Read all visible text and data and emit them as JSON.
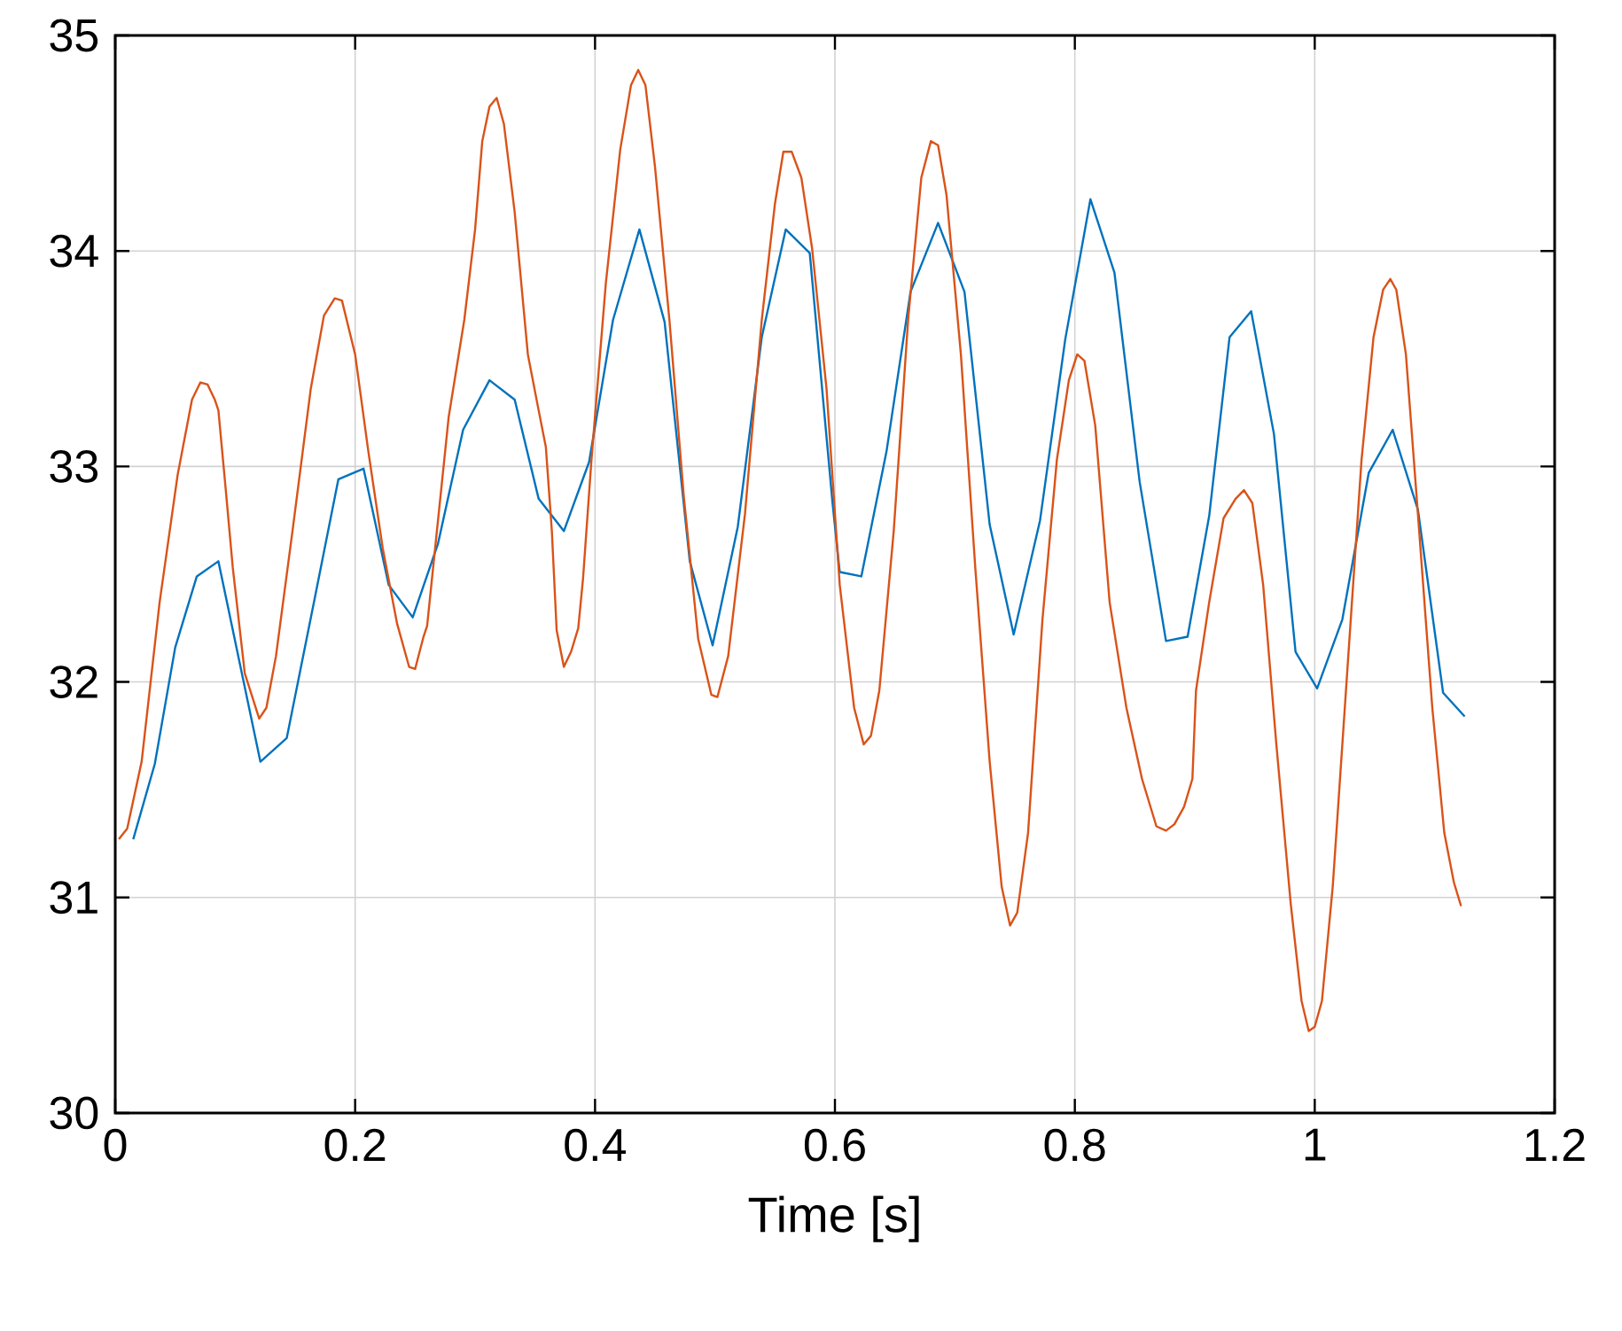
{
  "chart_data": {
    "type": "line",
    "xlabel": "Time [s]",
    "xlim": [
      0,
      1.2
    ],
    "xticks": [
      0,
      0.2,
      0.4,
      0.6,
      0.8,
      1,
      1.2
    ],
    "ylim": [
      30,
      35
    ],
    "yticks": [
      30,
      31,
      32,
      33,
      34,
      35
    ],
    "grid": true,
    "series": [
      {
        "color": "#0072bd",
        "x": [
          0.015,
          0.033,
          0.05,
          0.068,
          0.086,
          0.121,
          0.143,
          0.166,
          0.186,
          0.207,
          0.228,
          0.248,
          0.269,
          0.29,
          0.312,
          0.333,
          0.353,
          0.374,
          0.395,
          0.415,
          0.437,
          0.458,
          0.479,
          0.498,
          0.519,
          0.539,
          0.559,
          0.579,
          0.598,
          0.604,
          0.622,
          0.643,
          0.663,
          0.686,
          0.708,
          0.729,
          0.749,
          0.771,
          0.792,
          0.813,
          0.833,
          0.854,
          0.876,
          0.894,
          0.912,
          0.929,
          0.947,
          0.966,
          0.984,
          1.002,
          1.023,
          1.045,
          1.065,
          1.086,
          1.107,
          1.125
        ],
        "values": [
          31.27,
          31.62,
          32.16,
          32.49,
          32.56,
          31.63,
          31.74,
          32.38,
          32.94,
          32.99,
          32.45,
          32.3,
          32.64,
          33.17,
          33.4,
          33.31,
          32.85,
          32.7,
          33.02,
          33.68,
          34.1,
          33.67,
          32.56,
          32.17,
          32.72,
          33.6,
          34.1,
          33.99,
          32.83,
          32.51,
          32.49,
          33.07,
          33.81,
          34.13,
          33.81,
          32.73,
          32.22,
          32.75,
          33.59,
          34.24,
          33.9,
          32.93,
          32.19,
          32.21,
          32.77,
          33.6,
          33.72,
          33.15,
          32.14,
          31.97,
          32.29,
          32.97,
          33.17,
          32.8,
          31.95,
          31.84
        ]
      },
      {
        "color": "#d95319",
        "x": [
          0.003,
          0.01,
          0.022,
          0.037,
          0.052,
          0.064,
          0.071,
          0.077,
          0.083,
          0.086,
          0.092,
          0.098,
          0.108,
          0.12,
          0.126,
          0.134,
          0.148,
          0.163,
          0.174,
          0.183,
          0.189,
          0.2,
          0.211,
          0.223,
          0.235,
          0.245,
          0.25,
          0.257,
          0.26,
          0.265,
          0.278,
          0.291,
          0.3,
          0.306,
          0.312,
          0.318,
          0.324,
          0.333,
          0.344,
          0.353,
          0.359,
          0.364,
          0.368,
          0.374,
          0.38,
          0.386,
          0.39,
          0.397,
          0.409,
          0.421,
          0.43,
          0.436,
          0.442,
          0.45,
          0.462,
          0.474,
          0.486,
          0.497,
          0.502,
          0.511,
          0.525,
          0.539,
          0.55,
          0.557,
          0.564,
          0.572,
          0.581,
          0.593,
          0.604,
          0.616,
          0.624,
          0.63,
          0.637,
          0.649,
          0.661,
          0.672,
          0.68,
          0.686,
          0.693,
          0.705,
          0.717,
          0.729,
          0.739,
          0.746,
          0.752,
          0.761,
          0.773,
          0.785,
          0.795,
          0.802,
          0.808,
          0.817,
          0.829,
          0.843,
          0.856,
          0.868,
          0.876,
          0.883,
          0.891,
          0.898,
          0.901,
          0.912,
          0.924,
          0.934,
          0.941,
          0.948,
          0.957,
          0.968,
          0.98,
          0.989,
          0.995,
          1.0,
          1.006,
          1.015,
          1.027,
          1.039,
          1.049,
          1.057,
          1.063,
          1.068,
          1.076,
          1.086,
          1.098,
          1.108,
          1.116,
          1.122
        ],
        "values": [
          31.27,
          31.32,
          31.63,
          32.37,
          32.96,
          33.31,
          33.39,
          33.38,
          33.31,
          33.26,
          32.9,
          32.53,
          32.04,
          31.83,
          31.88,
          32.12,
          32.71,
          33.36,
          33.7,
          33.78,
          33.77,
          33.52,
          33.07,
          32.62,
          32.27,
          32.07,
          32.06,
          32.21,
          32.26,
          32.53,
          33.23,
          33.68,
          34.1,
          34.51,
          34.67,
          34.71,
          34.59,
          34.18,
          33.52,
          33.26,
          33.09,
          32.7,
          32.24,
          32.07,
          32.14,
          32.25,
          32.48,
          33.03,
          33.85,
          34.47,
          34.77,
          34.84,
          34.77,
          34.39,
          33.68,
          32.86,
          32.2,
          31.94,
          31.93,
          32.12,
          32.78,
          33.68,
          34.22,
          34.46,
          34.46,
          34.34,
          34.01,
          33.36,
          32.45,
          31.88,
          31.71,
          31.75,
          31.96,
          32.7,
          33.68,
          34.34,
          34.51,
          34.49,
          34.26,
          33.52,
          32.53,
          31.63,
          31.05,
          30.87,
          30.93,
          31.3,
          32.29,
          33.03,
          33.4,
          33.52,
          33.49,
          33.19,
          32.37,
          31.88,
          31.55,
          31.33,
          31.31,
          31.34,
          31.42,
          31.55,
          31.96,
          32.37,
          32.76,
          32.85,
          32.89,
          32.83,
          32.45,
          31.71,
          30.97,
          30.52,
          30.38,
          30.4,
          30.52,
          31.05,
          32.04,
          33.03,
          33.6,
          33.82,
          33.87,
          33.82,
          33.52,
          32.78,
          31.88,
          31.3,
          31.07,
          30.96
        ]
      }
    ]
  }
}
